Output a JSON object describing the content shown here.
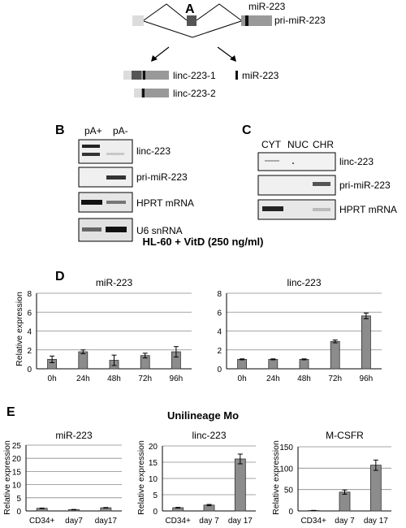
{
  "panelA": {
    "letter": "A",
    "mir_label": "miR-223",
    "pri_label": "pri-miR-223",
    "linc1_label": "linc-223-1",
    "linc2_label": "linc-223-2",
    "mature_label": "miR-223"
  },
  "panelB": {
    "letter": "B",
    "col_labels": [
      "pA+",
      "pA-"
    ],
    "row_labels": [
      "linc-223",
      "pri-miR-223",
      "HPRT mRNA",
      "U6 snRNA"
    ]
  },
  "panelC": {
    "letter": "C",
    "col_labels": [
      "CYT",
      "NUC",
      "CHR"
    ],
    "row_labels": [
      "linc-223",
      "pri-miR-223",
      "HPRT mRNA"
    ]
  },
  "panelD": {
    "letter": "D",
    "title": "HL-60 + VitD (250 ng/ml)"
  },
  "panelE": {
    "letter": "E",
    "title": "Unilineage Mo"
  },
  "chart_data": [
    {
      "type": "bar",
      "title": "miR-223",
      "ylabel": "Relative expression",
      "categories": [
        "0h",
        "24h",
        "48h",
        "72h",
        "96h"
      ],
      "values": [
        1.0,
        1.8,
        0.9,
        1.4,
        1.8
      ],
      "errors": [
        0.35,
        0.2,
        0.55,
        0.25,
        0.55
      ],
      "ylim": [
        0,
        8
      ],
      "yticks": [
        0,
        2,
        4,
        6,
        8
      ],
      "grid": true
    },
    {
      "type": "bar",
      "title": "linc-223",
      "ylabel": "",
      "categories": [
        "0h",
        "24h",
        "48h",
        "72h",
        "96h"
      ],
      "values": [
        1.0,
        1.0,
        1.0,
        2.9,
        5.6
      ],
      "errors": [
        0.05,
        0.05,
        0.05,
        0.15,
        0.3
      ],
      "ylim": [
        0,
        8
      ],
      "yticks": [
        0,
        2,
        4,
        6,
        8
      ],
      "grid": true
    },
    {
      "type": "bar",
      "title": "miR-223",
      "ylabel": "Relative expression",
      "categories": [
        "CD34+",
        "day7",
        "day17"
      ],
      "values": [
        1.0,
        0.5,
        1.2
      ],
      "errors": [
        0.1,
        0.08,
        0.1
      ],
      "ylim": [
        0,
        25
      ],
      "yticks": [
        0,
        5,
        10,
        15,
        20,
        25
      ],
      "grid": true
    },
    {
      "type": "bar",
      "title": "linc-223",
      "ylabel": "Relative expression",
      "categories": [
        "CD34+",
        "day 7",
        "day 17"
      ],
      "values": [
        1.0,
        1.8,
        16.0
      ],
      "errors": [
        0.1,
        0.2,
        1.5
      ],
      "ylim": [
        0,
        20
      ],
      "yticks": [
        0,
        5,
        10,
        15,
        20
      ],
      "grid": true
    },
    {
      "type": "bar",
      "title": "M-CSFR",
      "ylabel": "Relative expression",
      "categories": [
        "CD34+",
        "day 7",
        "day 17"
      ],
      "values": [
        1.0,
        44,
        107
      ],
      "errors": [
        0.3,
        5,
        12
      ],
      "ylim": [
        0,
        150
      ],
      "yticks": [
        0,
        50,
        100,
        150
      ],
      "grid": true
    }
  ]
}
